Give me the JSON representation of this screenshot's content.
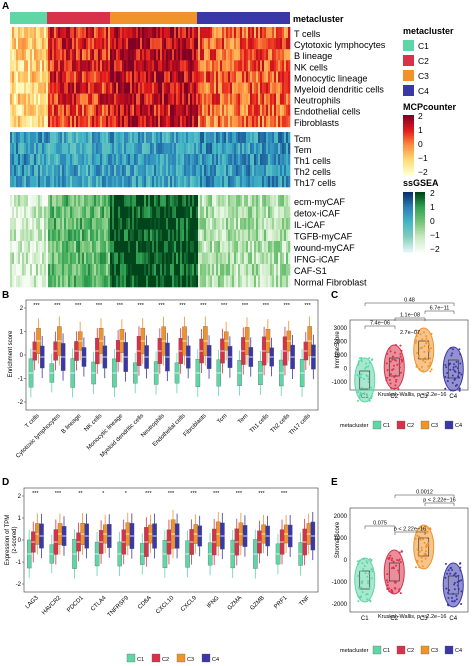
{
  "panels": {
    "A": "A",
    "B": "B",
    "C": "C",
    "D": "D",
    "E": "E"
  },
  "heatmap": {
    "meta_title": "metacluster",
    "mcp_rows": [
      "T cells",
      "Cytotoxic lymphocytes",
      "B lineage",
      "NK cells",
      "Monocytic lineage",
      "Myeloid dendritic cells",
      "Neutrophils",
      "Endothelial cells",
      "Fibroblasts"
    ],
    "t_rows": [
      "Tcm",
      "Tem",
      "Th1 cells",
      "Th2 cells",
      "Th17 cells"
    ],
    "caf_rows": [
      "ecm-myCAF",
      "detox-iCAF",
      "IL-iCAF",
      "TGFB-myCAF",
      "wound-myCAF",
      "IFNG-iCAF",
      "CAF-S1",
      "Normal Fibroblast"
    ]
  },
  "legend": {
    "metacluster_title": "metacluster",
    "clusters": [
      {
        "label": "C1",
        "color": "#5ed6a6"
      },
      {
        "label": "C2",
        "color": "#d8324a"
      },
      {
        "label": "C3",
        "color": "#f0932b"
      },
      {
        "label": "C4",
        "color": "#3a38a8"
      }
    ],
    "mcp_title": "MCPcounter",
    "mcp_ticks": [
      "2",
      "1",
      "0",
      "−1",
      "−2"
    ],
    "ssgsea_title": "ssGSEA",
    "ssgsea_ticks": [
      "2",
      "1",
      "0",
      "−1",
      "−2"
    ]
  },
  "panel_b": {
    "ylabel": "Enrichment score",
    "yticks": [
      "2",
      "1",
      "0",
      "-1",
      "-2"
    ],
    "categories": [
      "T cells",
      "Cytotoxic lymphocytes",
      "B lineage",
      "NK cells",
      "Monocytic lineage",
      "Myeloid dendritic cells",
      "Neutrophils",
      "Endothelial cells",
      "Fibroblasts",
      "Tcm",
      "Tem",
      "Th1 cells",
      "Th2 cells",
      "Th17 cells"
    ],
    "sig": [
      "***",
      "***",
      "***",
      "***",
      "***",
      "***",
      "***",
      "***",
      "***",
      "***",
      "***",
      "***",
      "***",
      "***"
    ]
  },
  "panel_c": {
    "ylabel": "ImmuneScore",
    "yticks": [
      "3000",
      "2000",
      "1000",
      "0",
      "-1000"
    ],
    "xticks": [
      "C1",
      "C2",
      "C3",
      "C4"
    ],
    "pvals": [
      "0.48",
      "6.7e−11",
      "1.1e−08",
      "7.4e−06",
      "2.7e−07"
    ],
    "kw": "Kruskal−Wallis, p < 2.2e−16",
    "legend_title": "metacluster"
  },
  "panel_d": {
    "ylabel": "Expression of TPM",
    "ylabel2": "(z-scored)",
    "yticks": [
      "2",
      "1",
      "0",
      "-1",
      "-2"
    ],
    "categories": [
      "LAG3",
      "HAVCR2",
      "PDCD1",
      "CTLA4",
      "TNFRSF9",
      "CD8A",
      "CXCL10",
      "CXCL9",
      "IFNG",
      "GZMA",
      "GZMB",
      "PRF1",
      "TNF"
    ],
    "sig": [
      "***",
      "***",
      "**",
      "*",
      "*",
      "***",
      "***",
      "***",
      "***",
      "***",
      "***",
      "***",
      ""
    ]
  },
  "panel_e": {
    "ylabel": "StromalScore",
    "yticks": [
      "2000",
      "1000",
      "0",
      "-1000",
      "-2000"
    ],
    "xticks": [
      "C1",
      "C2",
      "C3",
      "C4"
    ],
    "pvals": [
      "0.0012",
      "p < 2.22e−16",
      "0.075",
      "p < 2.22e−16"
    ],
    "kw": "Kruskal−Wallis, p < 2.2e−16",
    "legend_title": "metacluster"
  },
  "bottom_legend": {
    "labels": [
      "C1",
      "C2",
      "C3",
      "C4"
    ]
  }
}
